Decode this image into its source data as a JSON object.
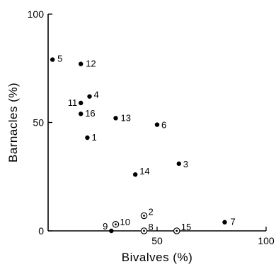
{
  "chart_data": {
    "type": "scatter",
    "xlabel": "Bivalves (%)",
    "ylabel": "Barnacles (%)",
    "xlim": [
      0,
      100
    ],
    "ylim": [
      0,
      100
    ],
    "x_ticks": [
      {
        "value": 50,
        "label": "50"
      },
      {
        "value": 100,
        "label": "100"
      }
    ],
    "y_ticks": [
      {
        "value": 0,
        "label": "0"
      },
      {
        "value": 50,
        "label": "50"
      },
      {
        "value": 100,
        "label": "100"
      }
    ],
    "points": [
      {
        "label": "1",
        "x": 18,
        "y": 43,
        "marker": "filled"
      },
      {
        "label": "2",
        "x": 44,
        "y": 7,
        "marker": "open-dot"
      },
      {
        "label": "3",
        "x": 60,
        "y": 31,
        "marker": "filled"
      },
      {
        "label": "4",
        "x": 19,
        "y": 62,
        "marker": "filled"
      },
      {
        "label": "5",
        "x": 2,
        "y": 79,
        "marker": "filled"
      },
      {
        "label": "6",
        "x": 50,
        "y": 49,
        "marker": "filled"
      },
      {
        "label": "7",
        "x": 81,
        "y": 4,
        "marker": "filled"
      },
      {
        "label": "8",
        "x": 44,
        "y": 0,
        "marker": "open-dot"
      },
      {
        "label": "9",
        "x": 29,
        "y": 0,
        "marker": "filled"
      },
      {
        "label": "10",
        "x": 31,
        "y": 3,
        "marker": "open-dot"
      },
      {
        "label": "11",
        "x": 15,
        "y": 59,
        "marker": "filled"
      },
      {
        "label": "12",
        "x": 15,
        "y": 77,
        "marker": "filled"
      },
      {
        "label": "13",
        "x": 31,
        "y": 52,
        "marker": "filled"
      },
      {
        "label": "14",
        "x": 40,
        "y": 26,
        "marker": "filled"
      },
      {
        "label": "15",
        "x": 59,
        "y": 0,
        "marker": "open-dot"
      },
      {
        "label": "16",
        "x": 15,
        "y": 54,
        "marker": "filled"
      }
    ],
    "grid": false
  }
}
